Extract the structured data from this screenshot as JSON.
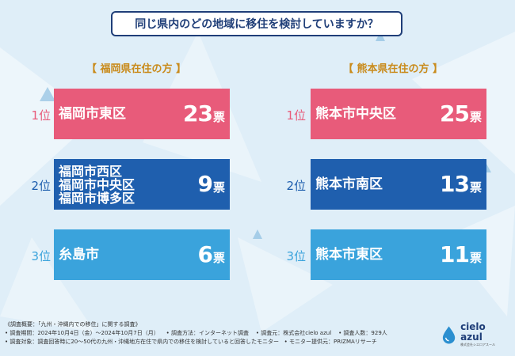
{
  "question": "同じ県内のどの地域に移住を検討していますか？",
  "left": {
    "heading": "【 福岡県在住の方 】",
    "rows": [
      {
        "rank": "1位",
        "names": [
          "福岡市東区"
        ],
        "votes": "23",
        "unit": "票"
      },
      {
        "rank": "2位",
        "names": [
          "福岡市西区",
          "福岡市中央区",
          "福岡市博多区"
        ],
        "votes": "9",
        "unit": "票"
      },
      {
        "rank": "3位",
        "names": [
          "糸島市"
        ],
        "votes": "6",
        "unit": "票"
      }
    ]
  },
  "right": {
    "heading": "【 熊本県在住の方 】",
    "rows": [
      {
        "rank": "1位",
        "names": [
          "熊本市中央区"
        ],
        "votes": "25",
        "unit": "票"
      },
      {
        "rank": "2位",
        "names": [
          "熊本市南区"
        ],
        "votes": "13",
        "unit": "票"
      },
      {
        "rank": "3位",
        "names": [
          "熊本市東区"
        ],
        "votes": "11",
        "unit": "票"
      }
    ]
  },
  "footer": {
    "line1": "《調査概要：「九州・沖縄内での移住」に関する調査》",
    "line2a": "• 調査期間：2024年10月4日（金）～2024年10月7日（月）",
    "line2b": "• 調査方法：インターネット調査",
    "line2c": "• 調査元：株式会社cielo azul",
    "line2d": "• 調査人数：929人",
    "line3a": "• 調査対象：調査回答時に20～50代の九州・沖縄地方在住で県内での移住を検討していると回答したモニター",
    "line3b": "• モニター提供元：PRIZMAリサーチ"
  },
  "logo": {
    "name": "cielo azul",
    "sub": "株式会社シエロアスール"
  },
  "colors": {
    "rank1": "#e85b7a",
    "rank2": "#1f5fae",
    "rank3": "#3aa3dc",
    "heading": "#c98b1c",
    "title_border": "#1f3e78"
  }
}
